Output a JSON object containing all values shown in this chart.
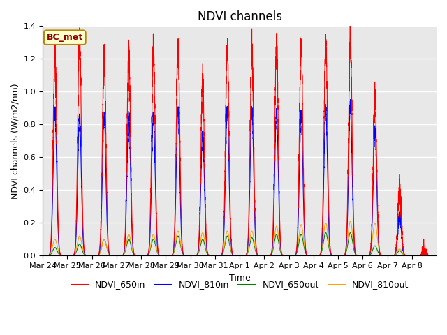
{
  "title": "NDVI channels",
  "ylabel": "NDVI channels (W/m2/nm)",
  "xlabel": "Time",
  "annotation": "BC_met",
  "ylim": [
    0,
    1.4
  ],
  "background_color": "#e8e8e8",
  "legend": [
    "NDVI_650in",
    "NDVI_810in",
    "NDVI_650out",
    "NDVI_810out"
  ],
  "colors": [
    "red",
    "blue",
    "green",
    "orange"
  ],
  "x_tick_labels": [
    "Mar 24",
    "Mar 25",
    "Mar 26",
    "Mar 27",
    "Mar 28",
    "Mar 29",
    "Mar 30",
    "Mar 31",
    "Apr 1",
    "Apr 2",
    "Apr 3",
    "Apr 4",
    "Apr 5",
    "Apr 6",
    "Apr 7",
    "Apr 8"
  ],
  "peaks_650in": [
    1.22,
    1.35,
    1.23,
    1.24,
    1.27,
    1.29,
    1.07,
    1.27,
    1.25,
    1.29,
    1.28,
    1.3,
    1.31,
    0.96,
    0.4,
    0.0
  ],
  "peaks_810in": [
    0.88,
    0.85,
    0.85,
    0.86,
    0.86,
    0.89,
    0.75,
    0.89,
    0.89,
    0.88,
    0.87,
    0.9,
    0.92,
    0.76,
    0.25,
    0.0
  ],
  "peaks_650out": [
    0.05,
    0.07,
    0.1,
    0.1,
    0.1,
    0.12,
    0.1,
    0.12,
    0.11,
    0.13,
    0.13,
    0.14,
    0.14,
    0.06,
    0.03,
    0.0
  ],
  "peaks_810out": [
    0.1,
    0.12,
    0.1,
    0.13,
    0.13,
    0.15,
    0.14,
    0.15,
    0.15,
    0.18,
    0.19,
    0.2,
    0.21,
    0.2,
    0.04,
    0.0
  ],
  "grid_color": "white",
  "title_fontsize": 12,
  "label_fontsize": 9,
  "tick_fontsize": 8,
  "legend_fontsize": 9,
  "figsize": [
    6.4,
    4.8
  ],
  "dpi": 100
}
